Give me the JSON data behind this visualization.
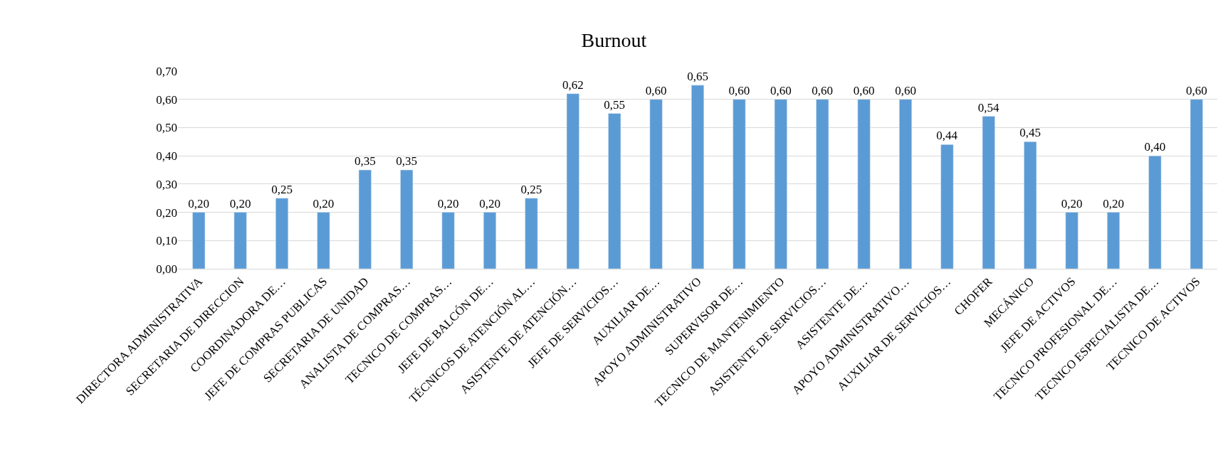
{
  "chart_data": {
    "type": "bar",
    "title": "Burnout",
    "categories": [
      "DIRECTORA ADMINISTRATIVA",
      "SECRETARIA DE DIRECCION",
      "COORDINADORA DE…",
      "JEFE DE COMPRAS PUBLICAS",
      "SECRETARIA DE UNIDAD",
      "ANALISTA DE COMPRAS…",
      "TECNICO DE COMPRAS…",
      "JEFE DE BALCÓN DE…",
      "TÉCNICOS DE ATENCIÓN AL…",
      "ASISTENTE DE ATENCIÓN…",
      "JEFE DE SERVICIOS…",
      "AUXILIAR DE…",
      "APOYO ADMINISTRATIVO",
      "SUPERVISOR DE…",
      "TECNICO DE MANTENIMIENTO",
      "ASISTENTE DE SERVICIOS…",
      "ASISTENTE DE…",
      "APOYO ADMINISTRATIVO…",
      "AUXILIAR DE SERVICIOS…",
      "CHOFER",
      "MECÁNICO",
      "JEFE DE ACTIVOS",
      "TECNICO PROFESIONAL DE…",
      "TECNICO ESPECIALISTA DE…",
      "TECNICO DE ACTIVOS"
    ],
    "values": [
      0.2,
      0.2,
      0.25,
      0.2,
      0.35,
      0.35,
      0.2,
      0.2,
      0.25,
      0.62,
      0.55,
      0.6,
      0.65,
      0.6,
      0.6,
      0.6,
      0.6,
      0.6,
      0.44,
      0.54,
      0.45,
      0.2,
      0.2,
      0.4,
      0.6
    ],
    "value_labels": [
      "0,20",
      "0,20",
      "0,25",
      "0,20",
      "0,35",
      "0,35",
      "0,20",
      "0,20",
      "0,25",
      "0,62",
      "0,55",
      "0,60",
      "0,65",
      "0,60",
      "0,60",
      "0,60",
      "0,60",
      "0,60",
      "0,44",
      "0,54",
      "0,45",
      "0,20",
      "0,20",
      "0,40",
      "0,60"
    ],
    "color": "#5b9bd5",
    "ylim": [
      0,
      0.7
    ],
    "yticks": [
      {
        "value": 0,
        "label": "0,00"
      },
      {
        "value": 0.1,
        "label": "0,10"
      },
      {
        "value": 0.2,
        "label": "0,20"
      },
      {
        "value": 0.3,
        "label": "0,30"
      },
      {
        "value": 0.4,
        "label": "0,40"
      },
      {
        "value": 0.5,
        "label": "0,50"
      },
      {
        "value": 0.6,
        "label": "0,60"
      },
      {
        "value": 0.7,
        "label": "0,70"
      }
    ],
    "grid": "y"
  }
}
